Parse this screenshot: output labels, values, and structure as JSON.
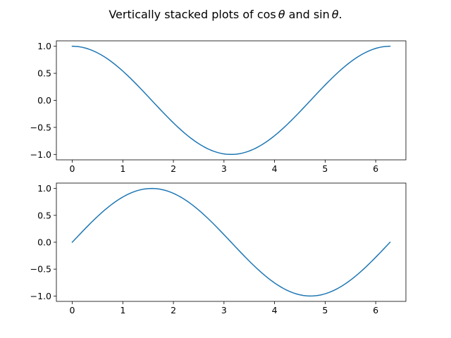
{
  "chart_data": [
    {
      "type": "line",
      "title": "",
      "xlabel": "",
      "ylabel": "",
      "xlim": [
        -0.314,
        6.597
      ],
      "ylim": [
        -1.1,
        1.1
      ],
      "xticks": [
        0,
        1,
        2,
        3,
        4,
        5,
        6
      ],
      "xtick_labels": [
        "0",
        "1",
        "2",
        "3",
        "4",
        "5",
        "6"
      ],
      "yticks": [
        1.0,
        0.5,
        0.0,
        -0.5,
        -1.0
      ],
      "ytick_labels": [
        "1.0",
        "0.5",
        "0.0",
        "−0.5",
        "−1.0"
      ],
      "grid": false,
      "legend": "none",
      "series": [
        {
          "color": "#1f77b4",
          "function": "cos",
          "x": [
            0,
            0.314,
            0.628,
            0.942,
            1.257,
            1.571,
            1.885,
            2.199,
            2.513,
            2.827,
            3.142,
            3.456,
            3.77,
            4.084,
            4.398,
            4.712,
            5.027,
            5.341,
            5.655,
            5.969,
            6.283
          ],
          "y": [
            1.0,
            0.951,
            0.809,
            0.588,
            0.309,
            0.0,
            -0.309,
            -0.588,
            -0.809,
            -0.951,
            -1.0,
            -0.951,
            -0.809,
            -0.588,
            -0.309,
            0.0,
            0.309,
            0.588,
            0.809,
            0.951,
            1.0
          ]
        }
      ]
    },
    {
      "type": "line",
      "title": "",
      "xlabel": "",
      "ylabel": "",
      "xlim": [
        -0.314,
        6.597
      ],
      "ylim": [
        -1.1,
        1.1
      ],
      "xticks": [
        0,
        1,
        2,
        3,
        4,
        5,
        6
      ],
      "xtick_labels": [
        "0",
        "1",
        "2",
        "3",
        "4",
        "5",
        "6"
      ],
      "yticks": [
        1.0,
        0.5,
        0.0,
        -0.5,
        -1.0
      ],
      "ytick_labels": [
        "1.0",
        "0.5",
        "0.0",
        "−0.5",
        "−1.0"
      ],
      "grid": false,
      "legend": "none",
      "series": [
        {
          "color": "#1f77b4",
          "function": "sin",
          "x": [
            0,
            0.314,
            0.628,
            0.942,
            1.257,
            1.571,
            1.885,
            2.199,
            2.513,
            2.827,
            3.142,
            3.456,
            3.77,
            4.084,
            4.398,
            4.712,
            5.027,
            5.341,
            5.655,
            5.969,
            6.283
          ],
          "y": [
            0.0,
            0.309,
            0.588,
            0.809,
            0.951,
            1.0,
            0.951,
            0.809,
            0.588,
            0.309,
            0.0,
            -0.309,
            -0.588,
            -0.809,
            -0.951,
            -1.0,
            -0.951,
            -0.809,
            -0.588,
            -0.309,
            0.0
          ]
        }
      ]
    }
  ],
  "figure": {
    "suptitle_pre": "Vertically stacked plots of ",
    "suptitle_cos": "cos",
    "suptitle_mid": " and ",
    "suptitle_sin": "sin",
    "suptitle_theta": "θ",
    "suptitle_end": "."
  }
}
